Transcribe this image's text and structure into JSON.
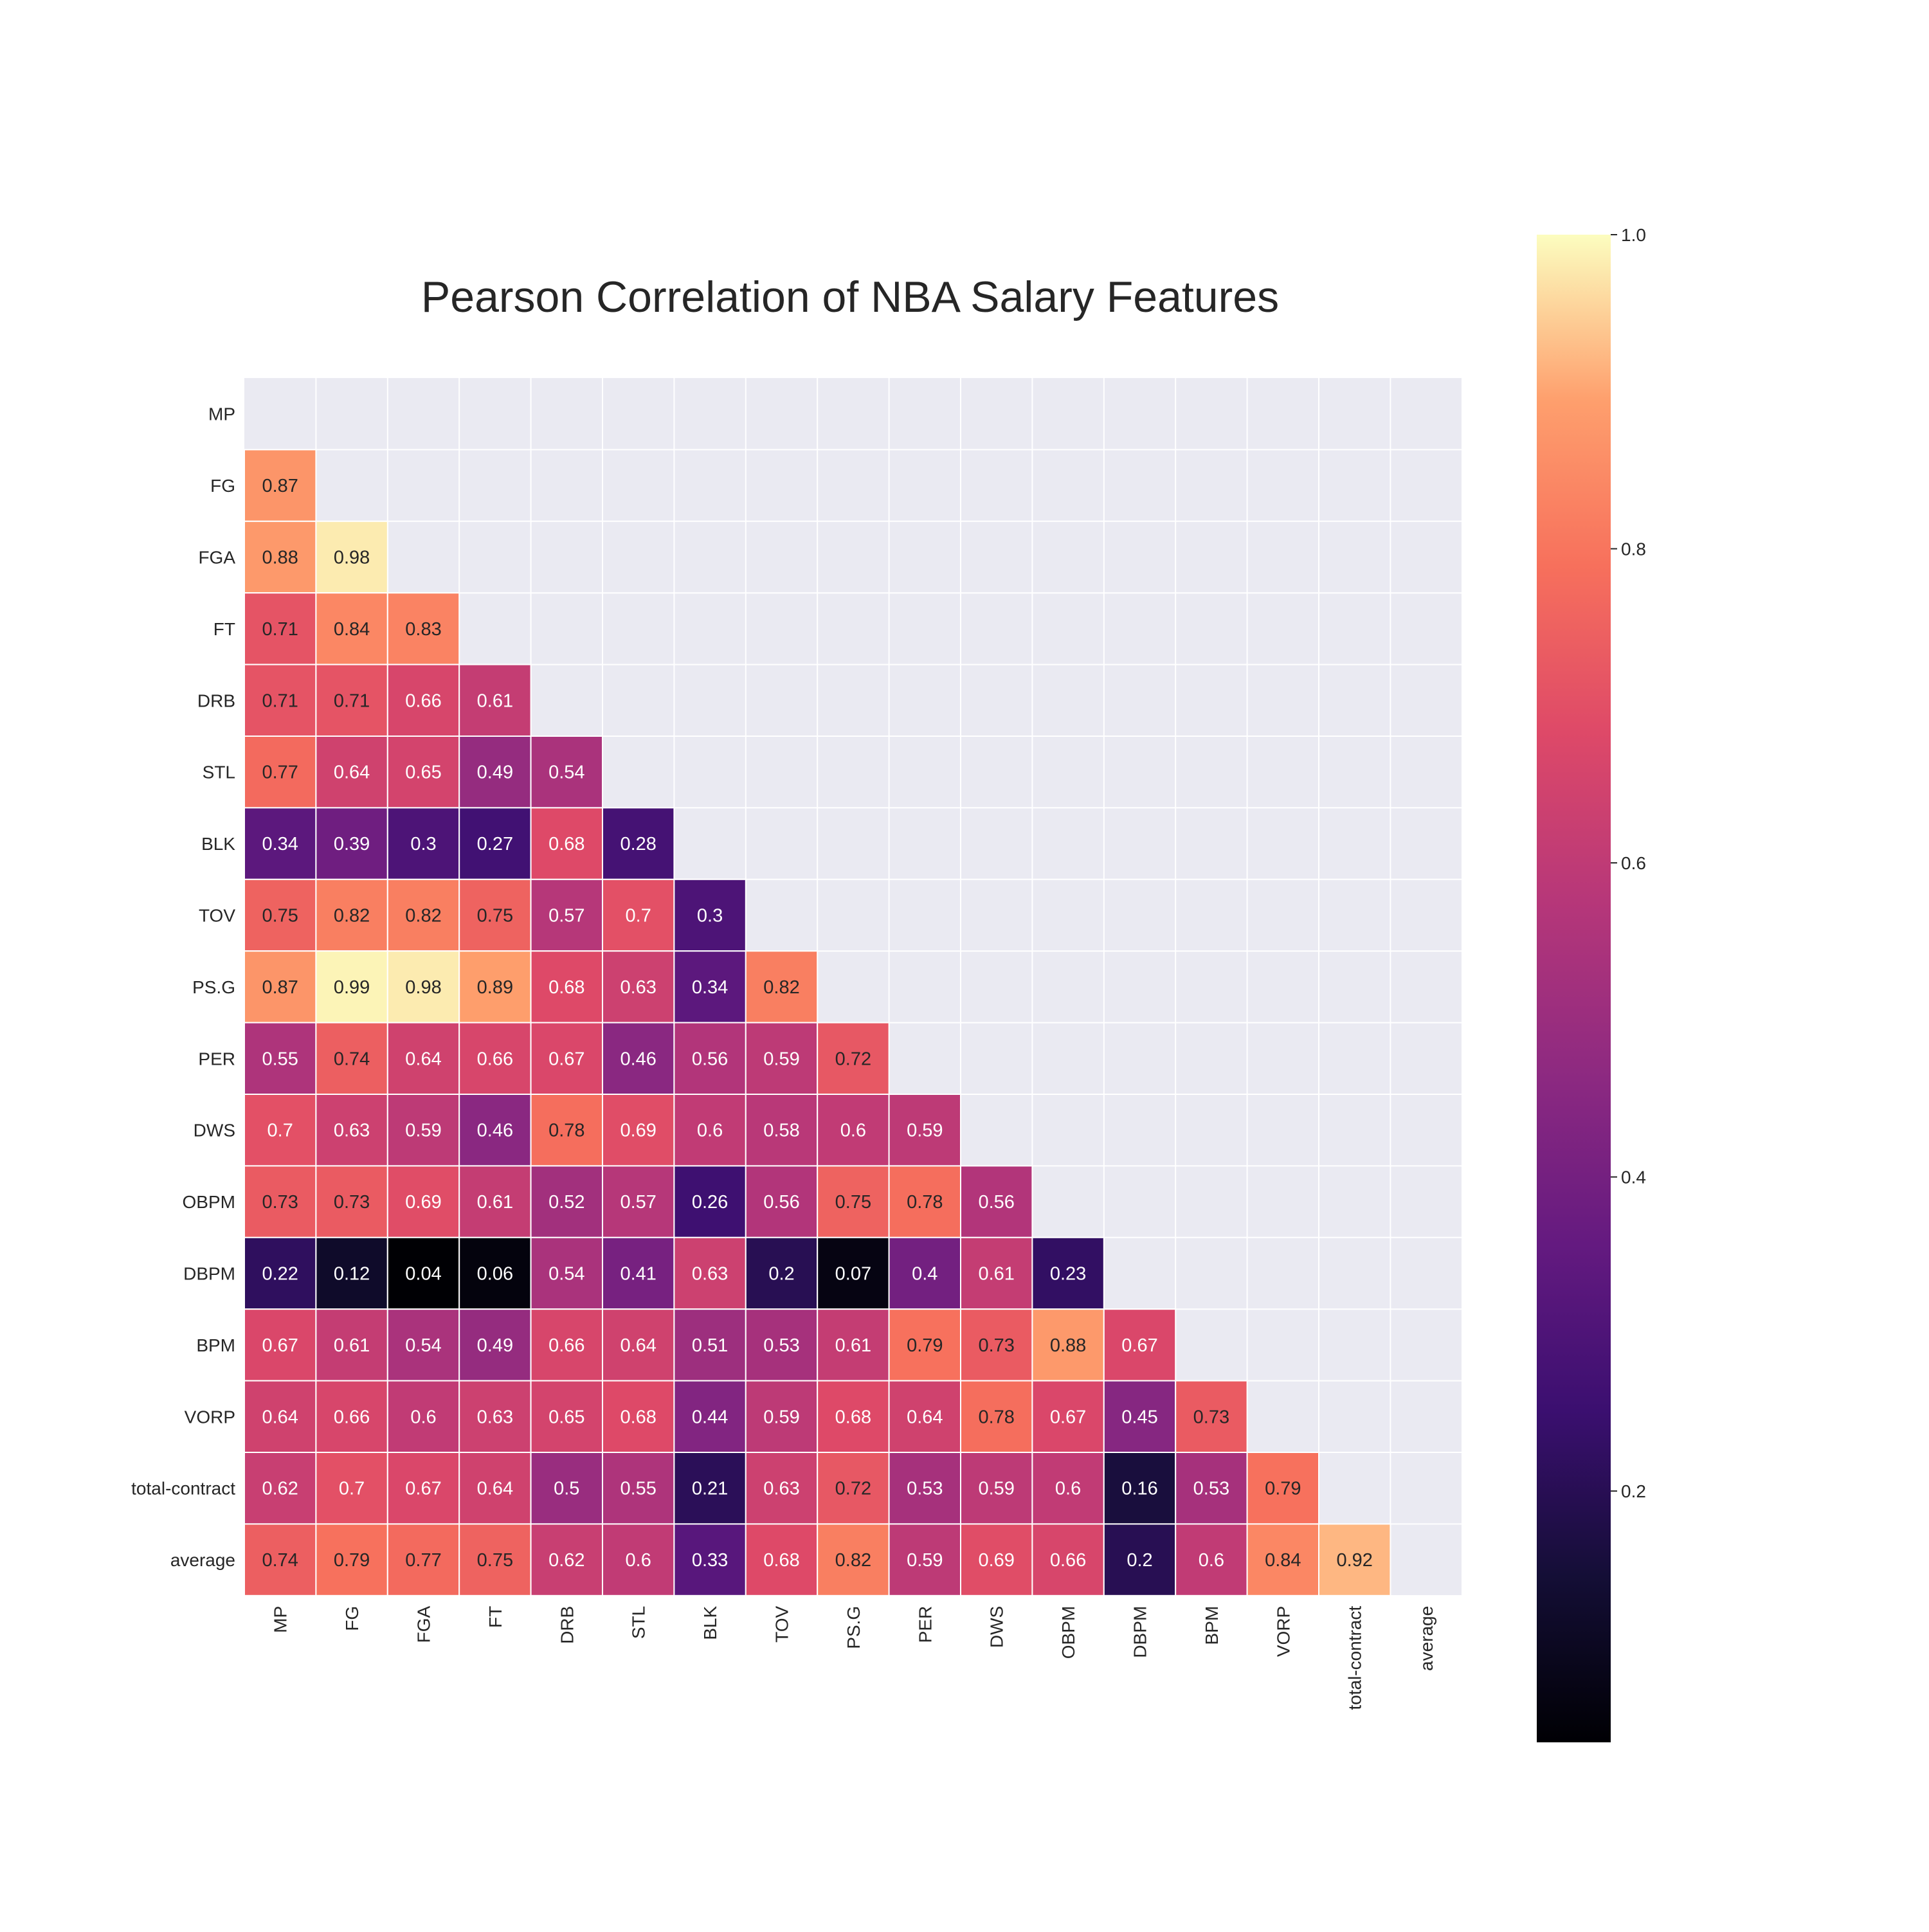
{
  "chart_data": {
    "type": "heatmap",
    "title": "Pearson Correlation of NBA Salary Features",
    "labels": [
      "MP",
      "FG",
      "FGA",
      "FT",
      "DRB",
      "STL",
      "BLK",
      "TOV",
      "PS.G",
      "PER",
      "DWS",
      "OBPM",
      "DBPM",
      "BPM",
      "VORP",
      "total-contract",
      "average"
    ],
    "mask": "upper-triangle-and-diagonal",
    "colormap": "magma",
    "colorbar": {
      "ticks": [
        0.2,
        0.4,
        0.6,
        0.8,
        1.0
      ],
      "tick_labels": [
        "0.2",
        "0.4",
        "0.6",
        "0.8",
        "1.0"
      ],
      "range": [
        0.04,
        1.0
      ]
    },
    "values": [
      [],
      [
        0.87
      ],
      [
        0.88,
        0.98
      ],
      [
        0.71,
        0.84,
        0.83
      ],
      [
        0.71,
        0.71,
        0.66,
        0.61
      ],
      [
        0.77,
        0.64,
        0.65,
        0.49,
        0.54
      ],
      [
        0.34,
        0.39,
        0.3,
        0.27,
        0.68,
        0.28
      ],
      [
        0.75,
        0.82,
        0.82,
        0.75,
        0.57,
        0.7,
        0.3
      ],
      [
        0.87,
        0.99,
        0.98,
        0.89,
        0.68,
        0.63,
        0.34,
        0.82
      ],
      [
        0.55,
        0.74,
        0.64,
        0.66,
        0.67,
        0.46,
        0.56,
        0.59,
        0.72
      ],
      [
        0.7,
        0.63,
        0.59,
        0.46,
        0.78,
        0.69,
        0.6,
        0.58,
        0.6,
        0.59
      ],
      [
        0.73,
        0.73,
        0.69,
        0.61,
        0.52,
        0.57,
        0.26,
        0.56,
        0.75,
        0.78,
        0.56
      ],
      [
        0.22,
        0.12,
        0.04,
        0.06,
        0.54,
        0.41,
        0.63,
        0.2,
        0.07,
        0.4,
        0.61,
        0.23
      ],
      [
        0.67,
        0.61,
        0.54,
        0.49,
        0.66,
        0.64,
        0.51,
        0.53,
        0.61,
        0.79,
        0.73,
        0.88,
        0.67
      ],
      [
        0.64,
        0.66,
        0.6,
        0.63,
        0.65,
        0.68,
        0.44,
        0.59,
        0.68,
        0.64,
        0.78,
        0.67,
        0.45,
        0.73
      ],
      [
        0.62,
        0.7,
        0.67,
        0.64,
        0.5,
        0.55,
        0.21,
        0.63,
        0.72,
        0.53,
        0.59,
        0.6,
        0.16,
        0.53,
        0.79
      ],
      [
        0.74,
        0.79,
        0.77,
        0.75,
        0.62,
        0.6,
        0.33,
        0.68,
        0.82,
        0.59,
        0.69,
        0.66,
        0.2,
        0.6,
        0.84,
        0.92
      ]
    ]
  }
}
